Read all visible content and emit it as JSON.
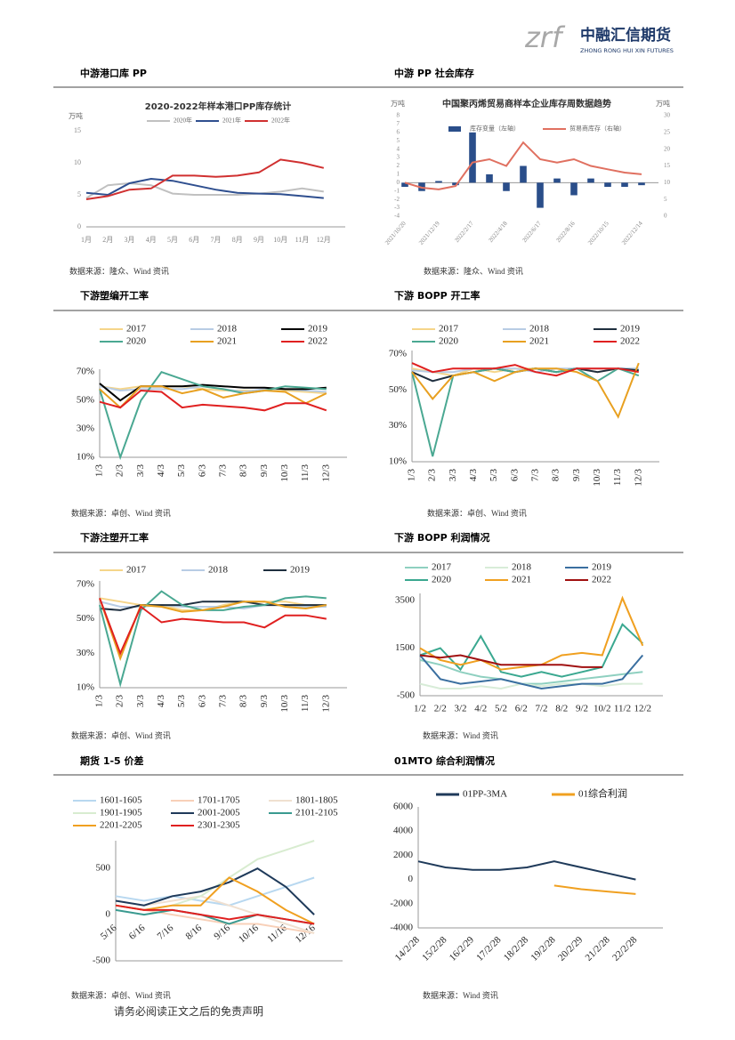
{
  "logo": {
    "mark": "zrf",
    "name": "中融汇信期货",
    "english": "ZHONG RONG HUI XIN FUTURES"
  },
  "footer": "请务必阅读正文之后的免责声明",
  "panels": [
    {
      "title": "中游港口库 PP",
      "source": "数据来源：隆众、Wind 资讯"
    },
    {
      "title": "中游 PP 社会库存",
      "source": "数据来源：隆众、Wind 资讯"
    },
    {
      "title": "下游塑编开工率",
      "source": "数据来源：卓创、Wind 资讯"
    },
    {
      "title": "下游 BOPP 开工率",
      "source": "数据来源：卓创、Wind 资讯"
    },
    {
      "title": "下游注塑开工率",
      "source": "数据来源：卓创、Wind 资讯"
    },
    {
      "title": "下游 BOPP 利润情况",
      "source": "数据来源：Wind 资讯"
    },
    {
      "title": "期货 1-5 价差",
      "source": "数据来源：卓创、Wind 资讯"
    },
    {
      "title": "01MTO 综合利润情况",
      "source": "数据来源：Wind 资讯"
    }
  ],
  "chart_data": [
    {
      "type": "line",
      "title": "2020-2022年样本港口PP库存统计",
      "y_label": "万吨",
      "categories": [
        "1月",
        "2月",
        "3月",
        "4月",
        "5月",
        "6月",
        "7月",
        "8月",
        "9月",
        "10月",
        "11月",
        "12月"
      ],
      "ylim": [
        0,
        15
      ],
      "yticks": [
        0,
        5,
        10,
        15
      ],
      "series": [
        {
          "name": "2020年",
          "color": "#c0c0c0",
          "values": [
            4.5,
            6.5,
            6.8,
            6.5,
            5.2,
            5,
            5,
            5,
            5.2,
            5.5,
            6,
            5.5
          ]
        },
        {
          "name": "2021年",
          "color": "#2f4f8f",
          "values": [
            5.3,
            5,
            6.8,
            7.5,
            7.2,
            6.5,
            5.8,
            5.3,
            5.2,
            5.1,
            4.8,
            4.5
          ]
        },
        {
          "name": "2022年",
          "color": "#d03030",
          "values": [
            4.3,
            4.8,
            5.8,
            6,
            8,
            8,
            7.8,
            8,
            8.5,
            10.5,
            10,
            9.2
          ]
        }
      ]
    },
    {
      "type": "combo",
      "title": "中国聚丙烯贸易商样本企业库存周数据趋势",
      "y_label": "万吨",
      "y2_label": "万吨",
      "categories": [
        "2021/10/20",
        null,
        "2021/12/19",
        null,
        "2022/2/17",
        null,
        "2022/4/18",
        null,
        "2022/6/17",
        null,
        "2022/8/16",
        null,
        "2022/10/15",
        null,
        "2022/12/14"
      ],
      "ylim": [
        -4,
        8
      ],
      "yticks": [
        -4,
        -3,
        -2,
        -1,
        0,
        1,
        2,
        3,
        4,
        5,
        6,
        7,
        8
      ],
      "y2lim": [
        0,
        30
      ],
      "y2ticks": [
        0,
        5,
        10,
        15,
        20,
        25,
        30
      ],
      "series": [
        {
          "name": "库存变量（左轴）",
          "type": "bar",
          "color": "#2a4e8a",
          "values": [
            -0.5,
            -1,
            0.2,
            -0.3,
            6,
            1,
            -1,
            2,
            -3,
            0.5,
            -1.5,
            0.5,
            -0.5,
            -0.5,
            -0.3
          ]
        },
        {
          "name": "贸易商库存（右轴）",
          "type": "line",
          "axis": "y2",
          "color": "#e07060",
          "values": [
            10,
            8.5,
            8,
            9,
            16,
            17,
            15,
            22,
            17,
            16,
            17,
            15,
            14,
            13,
            12.5
          ]
        }
      ]
    },
    {
      "type": "line",
      "categories": [
        "1/3",
        "2/3",
        "3/3",
        "4/3",
        "5/3",
        "6/3",
        "7/3",
        "8/3",
        "9/3",
        "10/3",
        "11/3",
        "12/3"
      ],
      "ylim": [
        10,
        72
      ],
      "yticks": [
        {
          "value": 10,
          "label": "10%"
        },
        {
          "value": 30,
          "label": "30%"
        },
        {
          "value": 50,
          "label": "50%"
        },
        {
          "value": 70,
          "label": "70%"
        }
      ],
      "series": [
        {
          "name": "2017",
          "color": "#f5d58a",
          "values": [
            60,
            58,
            60,
            60,
            60,
            58,
            57,
            57,
            57,
            57,
            56,
            55
          ]
        },
        {
          "name": "2018",
          "color": "#b8cce4",
          "values": [
            60,
            57,
            58,
            58,
            58,
            60,
            58,
            56,
            58,
            58,
            57,
            56
          ]
        },
        {
          "name": "2019",
          "color": "#000000",
          "values": [
            62,
            50,
            60,
            60,
            60,
            61,
            60,
            59,
            59,
            58,
            58,
            59
          ]
        },
        {
          "name": "2020",
          "color": "#4aa892",
          "values": [
            58,
            10,
            50,
            70,
            65,
            60,
            58,
            55,
            57,
            60,
            59,
            58
          ]
        },
        {
          "name": "2021",
          "color": "#e8a020",
          "values": [
            58,
            45,
            60,
            60,
            55,
            58,
            52,
            55,
            57,
            56,
            48,
            55
          ]
        },
        {
          "name": "2022",
          "color": "#e02020",
          "values": [
            49,
            45,
            57,
            56,
            45,
            47,
            46,
            45,
            43,
            48,
            48,
            43
          ]
        }
      ]
    },
    {
      "type": "line",
      "categories": [
        "1/3",
        "2/3",
        "3/3",
        "4/3",
        "5/3",
        "6/3",
        "7/3",
        "8/3",
        "9/3",
        "10/3",
        "11/3",
        "12/3"
      ],
      "ylim": [
        10,
        72
      ],
      "yticks": [
        {
          "value": 10,
          "label": "10%"
        },
        {
          "value": 30,
          "label": "30%"
        },
        {
          "value": 50,
          "label": "50%"
        },
        {
          "value": 70,
          "label": "70%"
        }
      ],
      "series": [
        {
          "name": "2017",
          "color": "#f5d58a",
          "values": [
            62,
            60,
            58,
            62,
            60,
            62,
            62,
            60,
            62,
            60,
            62,
            61
          ]
        },
        {
          "name": "2018",
          "color": "#b8cce4",
          "values": [
            61,
            60,
            60,
            62,
            62,
            62,
            60,
            62,
            62,
            62,
            62,
            62
          ]
        },
        {
          "name": "2019",
          "color": "#1f2f3f",
          "values": [
            60,
            55,
            58,
            60,
            62,
            60,
            62,
            60,
            62,
            60,
            62,
            61
          ]
        },
        {
          "name": "2020",
          "color": "#4aa892",
          "values": [
            60,
            13,
            58,
            60,
            62,
            60,
            62,
            60,
            62,
            55,
            62,
            58
          ]
        },
        {
          "name": "2021",
          "color": "#e8a020",
          "values": [
            60,
            45,
            58,
            60,
            55,
            60,
            62,
            62,
            60,
            55,
            35,
            65
          ]
        },
        {
          "name": "2022",
          "color": "#e02020",
          "values": [
            65,
            60,
            62,
            62,
            62,
            64,
            60,
            58,
            62,
            62,
            62,
            60
          ]
        }
      ]
    },
    {
      "type": "line",
      "categories": [
        "1/3",
        "2/3",
        "3/3",
        "4/3",
        "5/3",
        "6/3",
        "7/3",
        "8/3",
        "9/3",
        "10/3",
        "11/3",
        "12/3"
      ],
      "ylim": [
        10,
        72
      ],
      "yticks": [
        {
          "value": 10,
          "label": "10%"
        },
        {
          "value": 30,
          "label": "30%"
        },
        {
          "value": 50,
          "label": "50%"
        },
        {
          "value": 70,
          "label": "70%"
        }
      ],
      "series": [
        {
          "name": "2017",
          "color": "#f5d58a",
          "values": [
            62,
            60,
            58,
            58,
            55,
            55,
            58,
            60,
            60,
            60,
            58,
            58
          ]
        },
        {
          "name": "2018",
          "color": "#b8cce4",
          "values": [
            60,
            57,
            57,
            58,
            57,
            57,
            57,
            56,
            58,
            58,
            57,
            57
          ]
        },
        {
          "name": "2019",
          "color": "#1f2f3f",
          "values": [
            56,
            55,
            58,
            58,
            58,
            60,
            60,
            60,
            58,
            58,
            58,
            58
          ]
        },
        {
          "color": "#4aa892",
          "values": [
            58,
            12,
            55,
            66,
            58,
            55,
            55,
            57,
            58,
            62,
            63,
            62
          ]
        },
        {
          "color": "#e8a020",
          "values": [
            62,
            27,
            58,
            57,
            54,
            55,
            57,
            60,
            60,
            57,
            56,
            58
          ]
        },
        {
          "color": "#e02020",
          "values": [
            62,
            30,
            57,
            48,
            50,
            49,
            48,
            48,
            45,
            52,
            52,
            50
          ]
        }
      ]
    },
    {
      "type": "line",
      "categories": [
        "1/2",
        "2/2",
        "3/2",
        "4/2",
        "5/2",
        "6/2",
        "7/2",
        "8/2",
        "9/2",
        "10/2",
        "11/2",
        "12/2"
      ],
      "ylim": [
        -500,
        3800
      ],
      "yticks": [
        -500,
        1500,
        3500
      ],
      "series": [
        {
          "name": "2017",
          "color": "#8fd0c0",
          "values": [
            1000,
            800,
            500,
            300,
            200,
            0,
            0,
            100,
            200,
            300,
            400,
            500
          ]
        },
        {
          "name": "2018",
          "color": "#d8ecd8",
          "values": [
            0,
            -200,
            -200,
            -100,
            -200,
            0,
            -100,
            0,
            0,
            -100,
            0,
            0
          ]
        },
        {
          "name": "2019",
          "color": "#3a6fa0",
          "values": [
            1200,
            200,
            0,
            100,
            200,
            0,
            -200,
            -100,
            0,
            0,
            200,
            1200
          ]
        },
        {
          "name": "2020",
          "color": "#3aa890",
          "values": [
            1200,
            1500,
            600,
            2000,
            500,
            300,
            500,
            300,
            500,
            700,
            2500,
            1700
          ]
        },
        {
          "name": "2021",
          "color": "#f0a020",
          "values": [
            1500,
            1000,
            800,
            1000,
            600,
            700,
            800,
            1200,
            1300,
            1200,
            3600,
            1600
          ]
        },
        {
          "name": "2022",
          "color": "#a01010",
          "values": [
            1200,
            1100,
            1200,
            1000,
            800,
            800,
            800,
            800,
            700,
            700,
            null,
            null
          ]
        }
      ]
    },
    {
      "type": "line",
      "categories": [
        "5/16",
        "6/16",
        "7/16",
        "8/16",
        "9/16",
        "10/16",
        "11/16",
        "12/16"
      ],
      "ylim": [
        -500,
        800
      ],
      "yticks": [
        -500,
        0,
        500
      ],
      "series": [
        {
          "name": "1601-1605",
          "color": "#b8d8f0",
          "values": [
            200,
            150,
            200,
            150,
            100,
            200,
            300,
            400
          ]
        },
        {
          "name": "1701-1705",
          "color": "#f8d0b8",
          "values": [
            100,
            50,
            0,
            -50,
            -100,
            -100,
            -150,
            -200
          ]
        },
        {
          "name": "1801-1805",
          "color": "#f0e0d0",
          "values": [
            150,
            100,
            150,
            200,
            100,
            0,
            -100,
            -200
          ]
        },
        {
          "name": "1901-1905",
          "color": "#d8ecd0",
          "values": [
            100,
            50,
            100,
            200,
            400,
            600,
            700,
            800
          ]
        },
        {
          "name": "2001-2005",
          "color": "#1f3a5a",
          "values": [
            150,
            100,
            200,
            250,
            350,
            500,
            300,
            0
          ]
        },
        {
          "name": "2101-2105",
          "color": "#3a9a90",
          "values": [
            50,
            0,
            50,
            0,
            -100,
            0,
            -50,
            -100
          ]
        },
        {
          "name": "2201-2205",
          "color": "#f0a020",
          "values": [
            100,
            50,
            100,
            100,
            400,
            250,
            50,
            -100
          ]
        },
        {
          "name": "2301-2305",
          "color": "#e02020",
          "values": [
            100,
            50,
            50,
            0,
            -50,
            0,
            -50,
            -100
          ]
        }
      ]
    },
    {
      "type": "line",
      "categories": [
        "14/2/28",
        "15/2/28",
        "16/2/29",
        "17/2/28",
        "18/2/28",
        "19/2/28",
        "20/2/29",
        "21/2/28",
        "22/2/28"
      ],
      "ylim": [
        -4000,
        6000
      ],
      "yticks": [
        -4000,
        -2000,
        0,
        2000,
        4000,
        6000
      ],
      "series": [
        {
          "name": "01PP-3MA",
          "color": "#1f3a5a",
          "values": [
            1500,
            1000,
            800,
            800,
            1000,
            1500,
            1000,
            500,
            0
          ]
        },
        {
          "name": "01综合利润",
          "color": "#f0a020",
          "values": [
            null,
            null,
            null,
            null,
            null,
            -500,
            -800,
            -1000,
            -1200
          ]
        }
      ]
    }
  ]
}
